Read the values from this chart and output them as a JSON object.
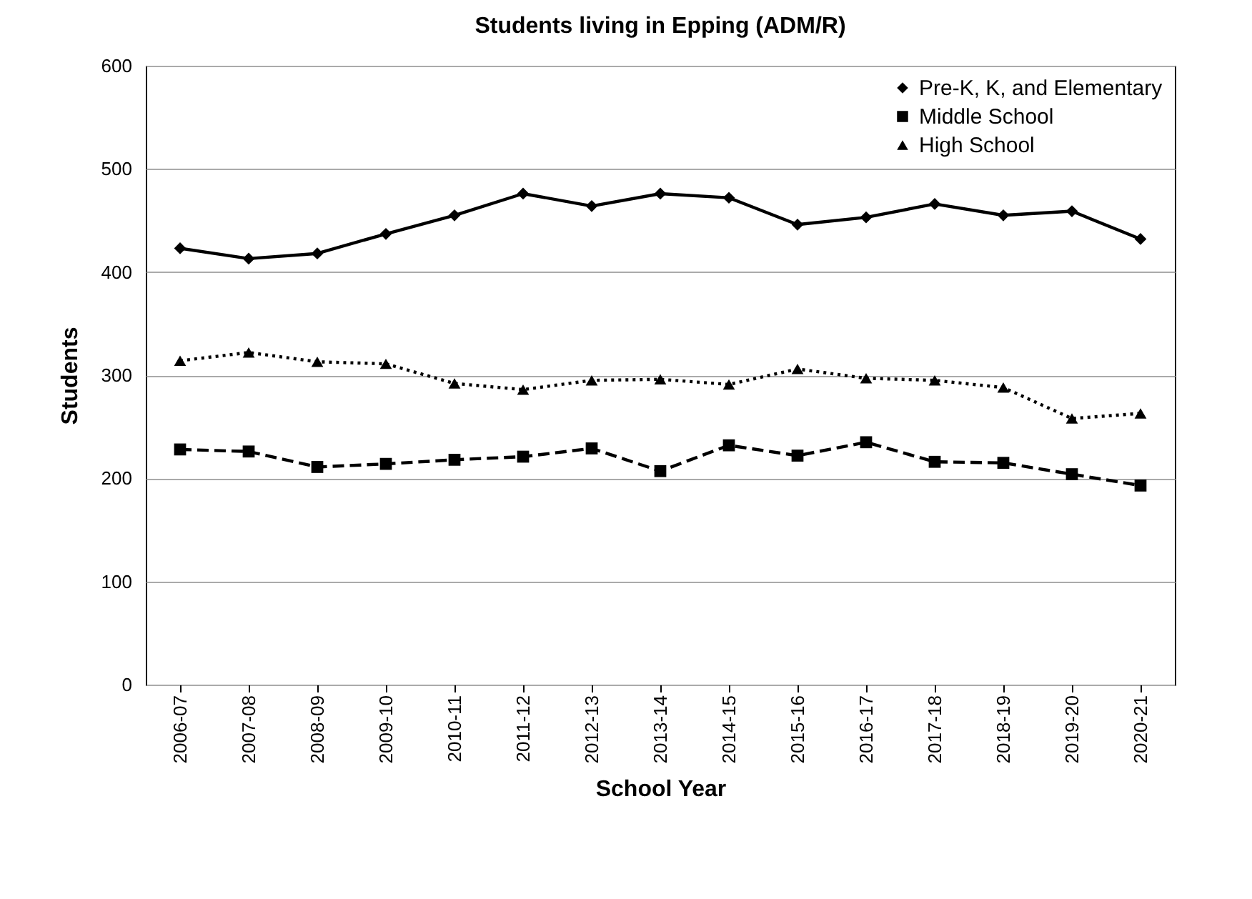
{
  "chart_data": {
    "type": "line",
    "title": "Students living in Epping (ADM/R)",
    "xlabel": "School Year",
    "ylabel": "Students",
    "categories": [
      "2006-07",
      "2007-08",
      "2008-09",
      "2009-10",
      "2010-11",
      "2011-12",
      "2012-13",
      "2013-14",
      "2014-15",
      "2015-16",
      "2016-17",
      "2017-18",
      "2018-19",
      "2019-20",
      "2020-21"
    ],
    "series": [
      {
        "name": "Pre-K, K, and Elementary",
        "color": "#000000",
        "marker": "diamond",
        "line_style": "solid",
        "values": [
          423,
          413,
          418,
          437,
          455,
          476,
          464,
          476,
          472,
          446,
          453,
          466,
          455,
          459,
          432
        ]
      },
      {
        "name": "Middle School",
        "color": "#000000",
        "marker": "square",
        "line_style": "dashed",
        "values": [
          228,
          226,
          211,
          214,
          218,
          221,
          229,
          207,
          232,
          222,
          235,
          216,
          215,
          204,
          193
        ]
      },
      {
        "name": "High School",
        "color": "#000000",
        "marker": "triangle",
        "line_style": "dotted",
        "values": [
          314,
          322,
          313,
          311,
          292,
          286,
          295,
          296,
          291,
          306,
          297,
          295,
          288,
          258,
          263
        ]
      }
    ],
    "ylim": [
      0,
      600
    ],
    "yticks": [
      0,
      100,
      200,
      300,
      400,
      500,
      600
    ],
    "grid": "y",
    "legend": "top right"
  }
}
